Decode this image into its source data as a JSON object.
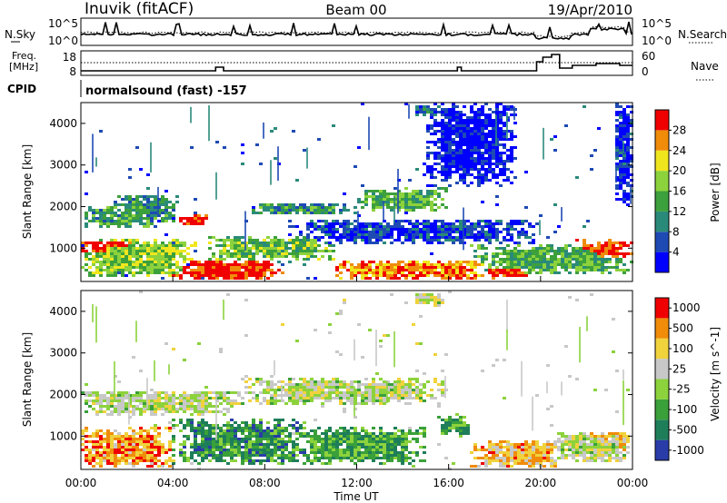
{
  "header": {
    "station": "Inuvik (fitACF)",
    "beam": "Beam 00",
    "date": "19/Apr/2010"
  },
  "noise_panel": {
    "left_label": "N.Sky",
    "left_ticks": [
      "10^5",
      "10^0"
    ],
    "right_ticks": [
      "10^5",
      "10^0"
    ],
    "right_label": "N.Search"
  },
  "freq_panel": {
    "left_label_1": "Freq.",
    "left_label_2": "[MHz]",
    "left_ticks": [
      "18",
      "8"
    ],
    "right_ticks": [
      "60",
      "0"
    ],
    "right_label": "Nave"
  },
  "cpid": {
    "label": "CPID",
    "value": "normalsound (fast) -157"
  },
  "chart_data": [
    {
      "type": "heatmap",
      "name": "power",
      "ylabel": "Slant Range [km]",
      "yticks": [
        "1000",
        "2000",
        "3000",
        "4000"
      ],
      "ylim": [
        200,
        4500
      ],
      "xlim": [
        0,
        24
      ],
      "colorbar_label": "Power [dB]",
      "colorbar_ticks": [
        "4",
        "8",
        "12",
        "16",
        "20",
        "24",
        "28"
      ],
      "colorbar_colors": [
        "#0000ff",
        "#1e4ab4",
        "#2a8a7a",
        "#3ca03c",
        "#8cd23c",
        "#f0e61e",
        "#f08c0a",
        "#f00000"
      ],
      "bands": [
        {
          "t0": 0.0,
          "t1": 5.0,
          "r0": 300,
          "r1": 1250,
          "level": 0.55
        },
        {
          "t0": 0.0,
          "t1": 2.5,
          "r0": 850,
          "r1": 1200,
          "level": 0.95
        },
        {
          "t0": 3.8,
          "t1": 8.8,
          "r0": 220,
          "r1": 700,
          "level": 0.97
        },
        {
          "t0": 5.5,
          "t1": 11.0,
          "r0": 700,
          "r1": 1300,
          "level": 0.5
        },
        {
          "t0": 0.0,
          "t1": 3.5,
          "r0": 1500,
          "r1": 2000,
          "level": 0.4
        },
        {
          "t0": 1.5,
          "t1": 4.2,
          "r0": 1600,
          "r1": 2300,
          "level": 0.35
        },
        {
          "t0": 4.2,
          "t1": 5.6,
          "r0": 1550,
          "r1": 1800,
          "level": 0.92
        },
        {
          "t0": 7.5,
          "t1": 12.0,
          "r0": 1800,
          "r1": 2100,
          "level": 0.35
        },
        {
          "t0": 12.0,
          "t1": 16.0,
          "r0": 1850,
          "r1": 2450,
          "level": 0.45
        },
        {
          "t0": 14.5,
          "t1": 15.8,
          "r0": 4150,
          "r1": 4450,
          "level": 0.25
        },
        {
          "t0": 11.0,
          "t1": 18.0,
          "r0": 220,
          "r1": 700,
          "level": 0.82
        },
        {
          "t0": 17.5,
          "t1": 19.5,
          "r0": 300,
          "r1": 550,
          "level": 0.98
        },
        {
          "t0": 17.0,
          "t1": 24.0,
          "r0": 350,
          "r1": 1100,
          "level": 0.45
        },
        {
          "t0": 21.5,
          "t1": 24.0,
          "r0": 700,
          "r1": 1200,
          "level": 0.93
        },
        {
          "t0": 9.0,
          "t1": 20.0,
          "r0": 1100,
          "r1": 1700,
          "level": 0.15
        },
        {
          "t0": 15.0,
          "t1": 19.0,
          "r0": 2500,
          "r1": 4500,
          "level": 0.05
        },
        {
          "t0": 23.2,
          "t1": 24.0,
          "r0": 2000,
          "r1": 4500,
          "level": 0.1
        }
      ]
    },
    {
      "type": "heatmap",
      "name": "velocity",
      "ylabel": "Slant Range [km]",
      "yticks": [
        "1000",
        "2000",
        "3000",
        "4000"
      ],
      "ylim": [
        200,
        4500
      ],
      "xlim": [
        0,
        24
      ],
      "xticks": [
        "00:00",
        "04:00",
        "08:00",
        "12:00",
        "16:00",
        "20:00",
        "00:00"
      ],
      "xlabel": "Time UT",
      "colorbar_label": "Velocity [m s^-1]",
      "colorbar_ticks": [
        "1000",
        "500",
        "100",
        "25",
        "-25",
        "-100",
        "-500",
        "-1000"
      ],
      "colorbar_colors": [
        "#2a3ca8",
        "#1e7e5a",
        "#3aa03a",
        "#8cd23c",
        "#c8c8c8",
        "#f0d23c",
        "#f08c0a",
        "#f00000"
      ],
      "bands": [
        {
          "t0": 0.0,
          "t1": 4.0,
          "r0": 250,
          "r1": 1200,
          "level": 0.78
        },
        {
          "t0": 4.0,
          "t1": 10.0,
          "r0": 300,
          "r1": 1400,
          "level": 0.25
        },
        {
          "t0": 9.5,
          "t1": 15.0,
          "r0": 300,
          "r1": 1200,
          "level": 0.3
        },
        {
          "t0": 0.0,
          "t1": 7.0,
          "r0": 1500,
          "r1": 2100,
          "level": 0.52
        },
        {
          "t0": 7.0,
          "t1": 16.0,
          "r0": 1750,
          "r1": 2400,
          "level": 0.52
        },
        {
          "t0": 14.5,
          "t1": 15.8,
          "r0": 4100,
          "r1": 4450,
          "level": 0.52
        },
        {
          "t0": 17.0,
          "t1": 21.0,
          "r0": 250,
          "r1": 900,
          "level": 0.72
        },
        {
          "t0": 20.5,
          "t1": 24.0,
          "r0": 350,
          "r1": 1100,
          "level": 0.52
        },
        {
          "t0": 22.0,
          "t1": 24.0,
          "r0": 600,
          "r1": 1100,
          "level": 0.65
        },
        {
          "t0": 15.5,
          "t1": 17.0,
          "r0": 1000,
          "r1": 1500,
          "level": 0.3
        }
      ]
    }
  ]
}
